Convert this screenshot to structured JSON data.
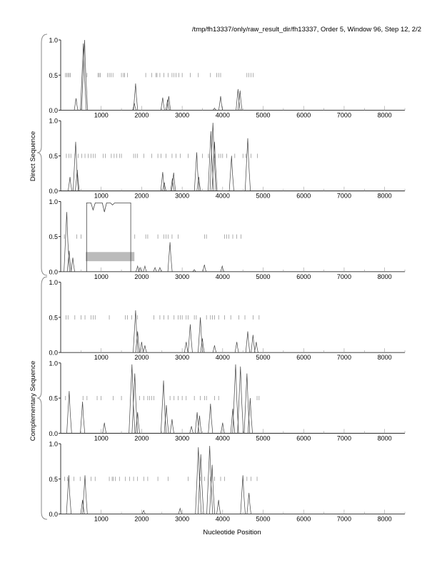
{
  "chart_data": {
    "type": "line",
    "title": "/tmp/fh13337/only/raw_result_dir/fh13337, Order 5, Window 96, Step 12, 2/2",
    "xlabel": "Nucleotide Position",
    "xlim": [
      0,
      8500
    ],
    "ylim": [
      0,
      1
    ],
    "x_ticks": [
      1000,
      2000,
      3000,
      4000,
      5000,
      6000,
      7000,
      8000
    ],
    "x_tick_labels": [
      "1000",
      "2000",
      "3000",
      "4000",
      "5000",
      "6000",
      "7000",
      "8000"
    ],
    "y_tick_labels": [
      "0.0",
      "0.5",
      "1.0"
    ],
    "group_labels": [
      "Direct Sequence",
      "Complementary Sequence"
    ],
    "panels": [
      {
        "name": "direct-frame-1",
        "group": "Direct Sequence",
        "peaks": [
          [
            380,
            0.17
          ],
          [
            560,
            0.95
          ],
          [
            590,
            1.0
          ],
          [
            1820,
            0.1
          ],
          [
            1850,
            0.38
          ],
          [
            2520,
            0.18
          ],
          [
            2640,
            0.15
          ],
          [
            2670,
            0.2
          ],
          [
            3800,
            0.03
          ],
          [
            3950,
            0.2
          ],
          [
            4380,
            0.3
          ],
          [
            4430,
            0.28
          ]
        ],
        "stop_codons": [
          120,
          150,
          180,
          210,
          240,
          650,
          920,
          950,
          980,
          1160,
          1200,
          1240,
          1290,
          1500,
          1550,
          1580,
          1650,
          2100,
          2250,
          2350,
          2380,
          2450,
          2550,
          2650,
          2750,
          2800,
          2850,
          2920,
          3000,
          3200,
          3400,
          3700,
          3850,
          3900,
          3950,
          4600,
          4650,
          4700,
          4750
        ]
      },
      {
        "name": "direct-frame-2",
        "group": "Direct Sequence",
        "peaks": [
          [
            230,
            0.2
          ],
          [
            370,
            0.7
          ],
          [
            410,
            0.3
          ],
          [
            2520,
            0.27
          ],
          [
            2560,
            0.12
          ],
          [
            2760,
            0.18
          ],
          [
            2790,
            0.26
          ],
          [
            3360,
            0.55
          ],
          [
            3410,
            0.2
          ],
          [
            3710,
            0.85
          ],
          [
            3760,
            0.97
          ],
          [
            3800,
            0.7
          ],
          [
            4220,
            0.5
          ],
          [
            4620,
            0.75
          ]
        ],
        "stop_codons": [
          140,
          200,
          250,
          350,
          430,
          520,
          600,
          680,
          750,
          800,
          850,
          1050,
          1100,
          1250,
          1320,
          1380,
          1450,
          1500,
          1800,
          1850,
          1900,
          2050,
          2250,
          2400,
          2480,
          2600,
          2750,
          2850,
          2950,
          3150,
          3500,
          3650,
          3800,
          3900,
          3950,
          4000,
          4100,
          4300,
          4500,
          4580,
          4700,
          4860
        ]
      },
      {
        "name": "direct-frame-3",
        "group": "Direct Sequence",
        "peaks": [
          [
            150,
            0.85
          ],
          [
            210,
            0.3
          ],
          [
            300,
            0.2
          ],
          [
            1900,
            0.08
          ],
          [
            1960,
            0.06
          ],
          [
            2080,
            0.08
          ],
          [
            2330,
            0.06
          ],
          [
            2450,
            0.06
          ],
          [
            2700,
            0.42
          ],
          [
            3300,
            0.03
          ],
          [
            3550,
            0.1
          ],
          [
            3990,
            0.08
          ]
        ],
        "orf_block": {
          "start": 640,
          "end": 1730,
          "level": 0.98,
          "dips": [
            [
              800,
              0.88
            ],
            [
              1080,
              0.85
            ],
            [
              1280,
              0.95
            ]
          ]
        },
        "highlight": {
          "start": 620,
          "end": 1820,
          "y_low": 0.15,
          "y_high": 0.28
        },
        "stop_codons": [
          90,
          400,
          500,
          1830,
          2100,
          2150,
          2400,
          2550,
          2600,
          2650,
          2750,
          2900,
          3550,
          3600,
          4050,
          4100,
          4150,
          4250,
          4350,
          4450
        ]
      },
      {
        "name": "complementary-frame-1",
        "group": "Complementary Sequence",
        "peaks": [
          [
            1850,
            0.6
          ],
          [
            1900,
            0.3
          ],
          [
            2000,
            0.15
          ],
          [
            2080,
            0.1
          ],
          [
            3100,
            0.15
          ],
          [
            3200,
            0.4
          ],
          [
            3450,
            0.5
          ],
          [
            3500,
            0.2
          ],
          [
            3800,
            0.1
          ],
          [
            4350,
            0.15
          ],
          [
            4620,
            0.3
          ],
          [
            4750,
            0.25
          ],
          [
            4830,
            0.15
          ]
        ],
        "stop_codons": [
          130,
          180,
          350,
          500,
          600,
          750,
          800,
          850,
          1200,
          1600,
          1650,
          1750,
          1900,
          2300,
          2450,
          2550,
          2650,
          2800,
          2900,
          2950,
          3000,
          3100,
          3150,
          3300,
          3350,
          3600,
          3700,
          3750,
          3800,
          3900,
          4050,
          4200,
          4400,
          4550,
          4750,
          4900
        ]
      },
      {
        "name": "complementary-frame-2",
        "group": "Complementary Sequence",
        "peaks": [
          [
            210,
            0.6
          ],
          [
            540,
            0.45
          ],
          [
            1080,
            0.15
          ],
          [
            1760,
            0.98
          ],
          [
            1830,
            0.85
          ],
          [
            1900,
            0.3
          ],
          [
            2540,
            0.75
          ],
          [
            2610,
            0.4
          ],
          [
            2750,
            0.2
          ],
          [
            3230,
            0.1
          ],
          [
            3370,
            0.3
          ],
          [
            3430,
            0.25
          ],
          [
            3700,
            0.42
          ],
          [
            4000,
            0.15
          ],
          [
            4250,
            0.35
          ],
          [
            4320,
            0.98
          ],
          [
            4440,
            0.95
          ],
          [
            4600,
            0.85
          ],
          [
            4680,
            0.5
          ]
        ],
        "stop_codons": [
          120,
          550,
          650,
          900,
          1000,
          1300,
          1500,
          1950,
          2050,
          2150,
          2200,
          2250,
          2300,
          2700,
          2800,
          2900,
          3000,
          3100,
          3300,
          3450,
          3550,
          3600,
          3800,
          3900,
          4850,
          4900
        ]
      },
      {
        "name": "complementary-frame-3",
        "group": "Complementary Sequence",
        "peaks": [
          [
            200,
            0.55
          ],
          [
            540,
            0.2
          ],
          [
            600,
            0.55
          ],
          [
            2050,
            0.05
          ],
          [
            2950,
            0.08
          ],
          [
            3400,
            0.95
          ],
          [
            3460,
            0.85
          ],
          [
            3680,
            0.97
          ],
          [
            3740,
            0.7
          ],
          [
            3900,
            0.2
          ],
          [
            4500,
            0.55
          ],
          [
            4650,
            0.3
          ]
        ],
        "stop_codons": [
          100,
          170,
          330,
          480,
          600,
          750,
          850,
          1200,
          1270,
          1300,
          1350,
          1450,
          1600,
          1700,
          1800,
          1900,
          2050,
          2150,
          2400,
          2650,
          3150,
          3450,
          3550,
          3700,
          3800,
          3950,
          4050,
          4500,
          4600,
          4700,
          4850
        ]
      }
    ]
  }
}
